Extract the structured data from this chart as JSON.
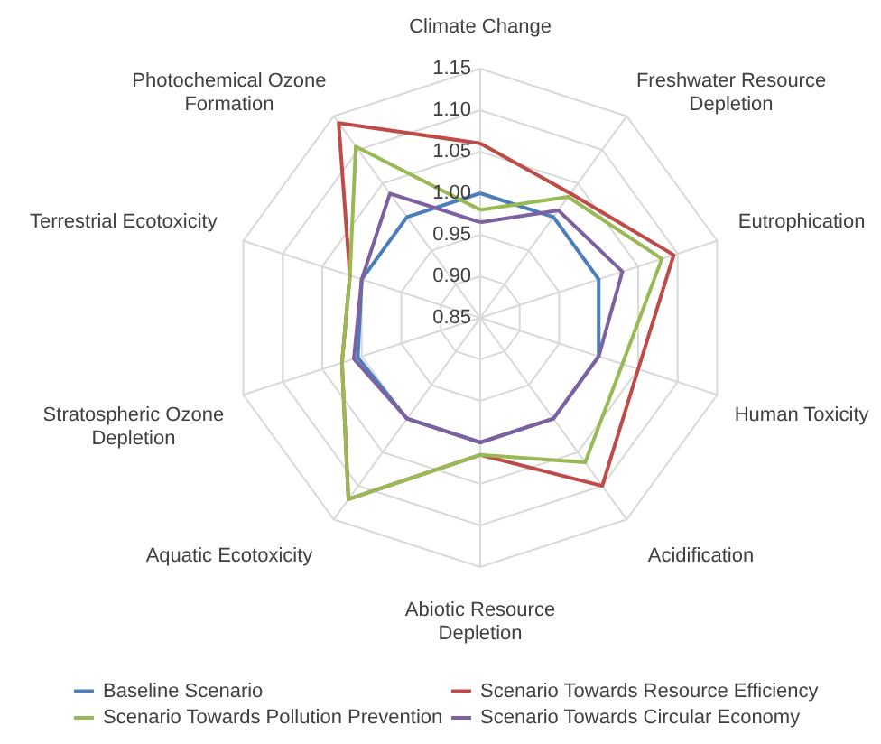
{
  "chart_data": {
    "type": "radar",
    "categories": [
      "Climate Change",
      "Freshwater Resource Depletion",
      "Eutrophication",
      "Human Toxicity",
      "Acidification",
      "Abiotic Resource Depletion",
      "Aquatic Ecotoxicity",
      "Stratospheric Ozone Depletion",
      "Terrestrial Ecotoxicity",
      "Photochemical Ozone Formation"
    ],
    "series": [
      {
        "name": "Baseline Scenario",
        "color": "#4a7ebb",
        "values": [
          1.0,
          1.0,
          1.0,
          1.0,
          1.0,
          1.0,
          1.0,
          1.005,
          1.0,
          1.0
        ]
      },
      {
        "name": "Scenario Towards Resource Efficiency",
        "color": "#be4b48",
        "values": [
          1.06,
          1.035,
          1.095,
          1.05,
          1.1,
          1.015,
          1.12,
          1.025,
          1.015,
          1.14
        ]
      },
      {
        "name": "Scenario Towards Pollution Prevention",
        "color": "#98b954",
        "values": [
          0.98,
          1.03,
          1.08,
          1.03,
          1.065,
          1.015,
          1.12,
          1.025,
          1.015,
          1.105
        ]
      },
      {
        "name": "Scenario Towards Circular Economy",
        "color": "#7d60a0",
        "values": [
          0.965,
          1.01,
          1.03,
          1.0,
          1.0,
          1.0,
          1.0,
          1.01,
          1.0,
          1.035
        ]
      }
    ],
    "ylim": [
      0.85,
      1.15
    ],
    "yticks": [
      {
        "value": 0.85,
        "label": "0.85"
      },
      {
        "value": 0.9,
        "label": "0.90"
      },
      {
        "value": 0.95,
        "label": "0.95"
      },
      {
        "value": 1.0,
        "label": "1.00"
      },
      {
        "value": 1.05,
        "label": "1.05"
      },
      {
        "value": 1.1,
        "label": "1.10"
      },
      {
        "value": 1.15,
        "label": "1.15"
      }
    ],
    "grid": true,
    "legend": "bottom"
  }
}
